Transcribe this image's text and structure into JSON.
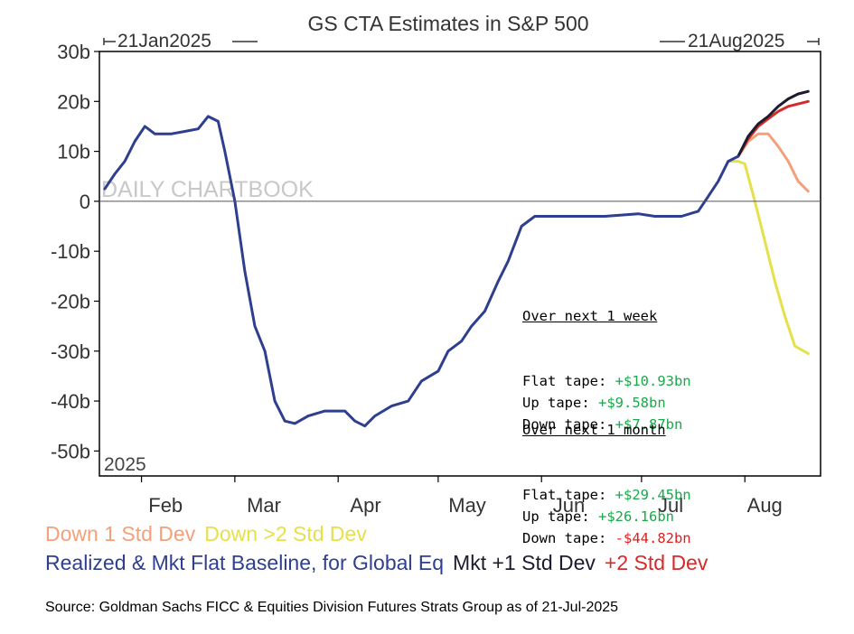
{
  "chart_data": {
    "type": "line",
    "title": "GS CTA Estimates in S&P 500",
    "date_range_start": "21Jan2025",
    "date_range_end": "21Aug2025",
    "panel_label": "2025",
    "watermark": "DAILY CHARTBOOK",
    "y_unit": "b",
    "ylim": [
      -55,
      30
    ],
    "y_ticks": [
      "30b",
      "20b",
      "10b",
      "0",
      "-10b",
      "-20b",
      "-30b",
      "-40b",
      "-50b"
    ],
    "y_tick_values": [
      30,
      20,
      10,
      0,
      -10,
      -20,
      -30,
      -40,
      -50
    ],
    "x_tick_labels": [
      "Feb",
      "Mar",
      "Apr",
      "May",
      "Jun",
      "Jul",
      "Aug"
    ],
    "x_tick_dates": [
      "2025-02-01",
      "2025-03-01",
      "2025-04-01",
      "2025-05-01",
      "2025-06-01",
      "2025-07-01",
      "2025-08-01"
    ],
    "x_range": [
      "2025-01-21",
      "2025-08-21"
    ],
    "grid": false,
    "series": [
      {
        "name": "Realized & Mkt Flat Baseline, for Global Eq",
        "color": "#2e3f8f",
        "points": [
          [
            "2025-01-21",
            2.5
          ],
          [
            "2025-01-24",
            5.5
          ],
          [
            "2025-01-27",
            8
          ],
          [
            "2025-01-30",
            12
          ],
          [
            "2025-02-02",
            15
          ],
          [
            "2025-02-05",
            13.5
          ],
          [
            "2025-02-10",
            13.5
          ],
          [
            "2025-02-14",
            14
          ],
          [
            "2025-02-18",
            14.5
          ],
          [
            "2025-02-21",
            17
          ],
          [
            "2025-02-24",
            16
          ],
          [
            "2025-02-26",
            10
          ],
          [
            "2025-03-01",
            0
          ],
          [
            "2025-03-04",
            -14
          ],
          [
            "2025-03-07",
            -25
          ],
          [
            "2025-03-10",
            -30
          ],
          [
            "2025-03-13",
            -40
          ],
          [
            "2025-03-16",
            -44
          ],
          [
            "2025-03-19",
            -44.5
          ],
          [
            "2025-03-23",
            -43
          ],
          [
            "2025-03-28",
            -42
          ],
          [
            "2025-04-03",
            -42
          ],
          [
            "2025-04-06",
            -44
          ],
          [
            "2025-04-09",
            -45
          ],
          [
            "2025-04-12",
            -43
          ],
          [
            "2025-04-17",
            -41
          ],
          [
            "2025-04-22",
            -40
          ],
          [
            "2025-04-26",
            -36
          ],
          [
            "2025-05-01",
            -34
          ],
          [
            "2025-05-04",
            -30
          ],
          [
            "2025-05-08",
            -28
          ],
          [
            "2025-05-11",
            -25
          ],
          [
            "2025-05-15",
            -22
          ],
          [
            "2025-05-19",
            -16
          ],
          [
            "2025-05-22",
            -12
          ],
          [
            "2025-05-26",
            -5
          ],
          [
            "2025-05-30",
            -3
          ],
          [
            "2025-06-10",
            -3
          ],
          [
            "2025-06-20",
            -3
          ],
          [
            "2025-06-30",
            -2.5
          ],
          [
            "2025-07-05",
            -3
          ],
          [
            "2025-07-13",
            -3
          ],
          [
            "2025-07-18",
            -2
          ],
          [
            "2025-07-21",
            1
          ],
          [
            "2025-07-24",
            4
          ],
          [
            "2025-07-27",
            8
          ],
          [
            "2025-07-30",
            9
          ]
        ]
      },
      {
        "name": "Mkt +1 Std Dev",
        "color": "#1c1c2e",
        "points": [
          [
            "2025-07-30",
            9
          ],
          [
            "2025-08-02",
            13
          ],
          [
            "2025-08-05",
            15.5
          ],
          [
            "2025-08-08",
            17
          ],
          [
            "2025-08-11",
            19
          ],
          [
            "2025-08-14",
            20.5
          ],
          [
            "2025-08-17",
            21.5
          ],
          [
            "2025-08-20",
            22
          ]
        ]
      },
      {
        "name": "+2 Std Dev",
        "color": "#d62a2a",
        "points": [
          [
            "2025-07-30",
            9
          ],
          [
            "2025-08-02",
            12.5
          ],
          [
            "2025-08-05",
            15
          ],
          [
            "2025-08-08",
            16.5
          ],
          [
            "2025-08-11",
            18
          ],
          [
            "2025-08-14",
            19
          ],
          [
            "2025-08-17",
            19.5
          ],
          [
            "2025-08-20",
            20
          ]
        ]
      },
      {
        "name": "Down 1 Std Dev",
        "color": "#f4a07a",
        "points": [
          [
            "2025-07-30",
            9
          ],
          [
            "2025-08-02",
            12
          ],
          [
            "2025-08-05",
            13.5
          ],
          [
            "2025-08-08",
            13.5
          ],
          [
            "2025-08-11",
            11
          ],
          [
            "2025-08-14",
            8
          ],
          [
            "2025-08-17",
            4
          ],
          [
            "2025-08-20",
            2
          ]
        ]
      },
      {
        "name": "Down >2 Std Dev",
        "color": "#e6e04a",
        "points": [
          [
            "2025-07-27",
            8
          ],
          [
            "2025-07-30",
            8
          ],
          [
            "2025-08-01",
            7.5
          ],
          [
            "2025-08-04",
            0
          ],
          [
            "2025-08-07",
            -8
          ],
          [
            "2025-08-10",
            -16
          ],
          [
            "2025-08-13",
            -23
          ],
          [
            "2025-08-16",
            -29
          ],
          [
            "2025-08-20",
            -30.5
          ]
        ]
      }
    ],
    "annotation": {
      "week_header": "Over next 1 week",
      "week_rows": [
        {
          "label": "Flat tape: ",
          "value": "+$10.93bn",
          "color": "#1aa84b"
        },
        {
          "label": "Up tape: ",
          "value": "+$9.58bn",
          "color": "#1aa84b"
        },
        {
          "label": "Down tape: ",
          "value": "+$7.87bn",
          "color": "#1aa84b"
        }
      ],
      "month_header": "Over next 1 month",
      "month_rows": [
        {
          "label": "Flat tape: ",
          "value": "+$29.45bn",
          "color": "#1aa84b"
        },
        {
          "label": "Up tape: ",
          "value": "+$26.16bn",
          "color": "#1aa84b"
        },
        {
          "label": "Down tape: ",
          "value": "-$44.82bn",
          "color": "#e11d1d"
        }
      ]
    }
  },
  "legend": {
    "row1": [
      {
        "text": "Down 1 Std Dev",
        "color": "#f4a07a"
      },
      {
        "text": "Down >2 Std Dev",
        "color": "#e6e04a"
      }
    ],
    "row2": [
      {
        "text": "Realized & Mkt Flat Baseline, for Global Eq",
        "color": "#2e3f8f"
      },
      {
        "text": "Mkt +1 Std Dev",
        "color": "#1c1c2e"
      },
      {
        "text": "+2 Std Dev",
        "color": "#d62a2a"
      }
    ]
  },
  "source": "Source: Goldman Sachs FICC & Equities Division Futures Strats Group as of 21-Jul-2025"
}
